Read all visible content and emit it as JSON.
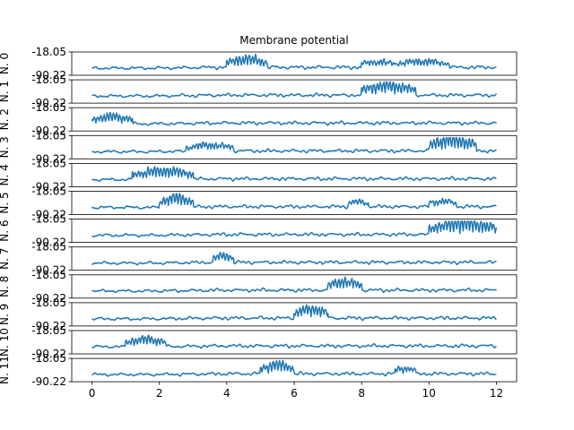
{
  "chart_data": {
    "type": "line",
    "title": "Membrane potential",
    "xlim": [
      -0.6,
      12.6
    ],
    "x_ticks": [
      0,
      2,
      4,
      6,
      8,
      10,
      12
    ],
    "ylim": [
      -90.22,
      -18.05
    ],
    "y_tick_labels": [
      "-90.22",
      "-18.05"
    ],
    "line_color": "#1f77b4",
    "grid": false,
    "legend": "none",
    "panels": [
      {
        "ylabel": "N. 0",
        "events": [
          {
            "t0": 4.0,
            "t1": 5.2,
            "amp": 0.62
          },
          {
            "t0": 8.0,
            "t1": 9.0,
            "amp": 0.35
          },
          {
            "t0": 9.0,
            "t1": 10.6,
            "amp": 0.4
          }
        ]
      },
      {
        "ylabel": "N. 1",
        "events": [
          {
            "t0": 8.0,
            "t1": 9.6,
            "amp": 0.75
          }
        ]
      },
      {
        "ylabel": "N. 2",
        "events": [
          {
            "t0": 0.0,
            "t1": 1.2,
            "amp": 0.55
          }
        ]
      },
      {
        "ylabel": "N. 3",
        "events": [
          {
            "t0": 2.8,
            "t1": 4.2,
            "amp": 0.4
          },
          {
            "t0": 10.0,
            "t1": 11.4,
            "amp": 0.9
          }
        ]
      },
      {
        "ylabel": "N. 4",
        "events": [
          {
            "t0": 1.2,
            "t1": 3.0,
            "amp": 0.68
          }
        ]
      },
      {
        "ylabel": "N. 5",
        "events": [
          {
            "t0": 2.0,
            "t1": 3.0,
            "amp": 0.72
          },
          {
            "t0": 7.6,
            "t1": 8.2,
            "amp": 0.3
          },
          {
            "t0": 10.0,
            "t1": 10.8,
            "amp": 0.35
          }
        ]
      },
      {
        "ylabel": "N. 6",
        "events": [
          {
            "t0": 10.0,
            "t1": 12.0,
            "amp": 0.92
          }
        ]
      },
      {
        "ylabel": "N. 7",
        "events": [
          {
            "t0": 3.6,
            "t1": 4.2,
            "amp": 0.5
          }
        ]
      },
      {
        "ylabel": "N. 8",
        "events": [
          {
            "t0": 7.0,
            "t1": 8.0,
            "amp": 0.65
          }
        ]
      },
      {
        "ylabel": "N. 9",
        "events": [
          {
            "t0": 6.0,
            "t1": 7.0,
            "amp": 0.7
          }
        ]
      },
      {
        "ylabel": "N. 10",
        "events": [
          {
            "t0": 1.0,
            "t1": 2.2,
            "amp": 0.55
          }
        ]
      },
      {
        "ylabel": "N. 11",
        "events": [
          {
            "t0": 5.0,
            "t1": 6.0,
            "amp": 0.7
          },
          {
            "t0": 9.0,
            "t1": 9.6,
            "amp": 0.35
          }
        ]
      }
    ]
  }
}
